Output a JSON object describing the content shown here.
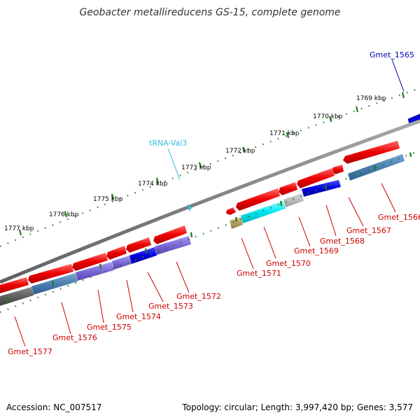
{
  "title": "Geobacter metallireducens GS-15, complete genome",
  "footer": {
    "accession": "Accession: NC_007517",
    "info": "Topology: circular; Length: 3,997,420 bp; Genes: 3,577"
  },
  "colors": {
    "backbone": "#808080",
    "tick": "#1f7a1f",
    "gene_label_red": "#cc0000",
    "gene_label_blue": "#0000bb",
    "trna_label": "#33bbdd"
  },
  "scale_labels": [
    "1769 kbp",
    "1770 kbp",
    "1771 kbp",
    "1772 kbp",
    "1773 kbp",
    "1774 kbp",
    "1775 kbp",
    "1776 kbp",
    "1777 kbp"
  ],
  "gene_labels": [
    {
      "id": "Gmet_1565",
      "text": "Gmet_1565",
      "color": "blue"
    },
    {
      "id": "tRNA-Val3",
      "text": "tRNA-Val3",
      "color": "cyan"
    },
    {
      "id": "Gmet_1566",
      "text": "Gmet_1566",
      "color": "red"
    },
    {
      "id": "Gmet_1567",
      "text": "Gmet_1567",
      "color": "red"
    },
    {
      "id": "Gmet_1568",
      "text": "Gmet_1568",
      "color": "red"
    },
    {
      "id": "Gmet_1569",
      "text": "Gmet_1569",
      "color": "red"
    },
    {
      "id": "Gmet_1570",
      "text": "Gmet_1570",
      "color": "red"
    },
    {
      "id": "Gmet_1571",
      "text": "Gmet_1571",
      "color": "red"
    },
    {
      "id": "Gmet_1572",
      "text": "Gmet_1572",
      "color": "red"
    },
    {
      "id": "Gmet_1573",
      "text": "Gmet_1573",
      "color": "red"
    },
    {
      "id": "Gmet_1574",
      "text": "Gmet_1574",
      "color": "red"
    },
    {
      "id": "Gmet_1575",
      "text": "Gmet_1575",
      "color": "red"
    },
    {
      "id": "Gmet_1576",
      "text": "Gmet_1576",
      "color": "red"
    },
    {
      "id": "Gmet_1577",
      "text": "Gmet_1577",
      "color": "red"
    }
  ]
}
